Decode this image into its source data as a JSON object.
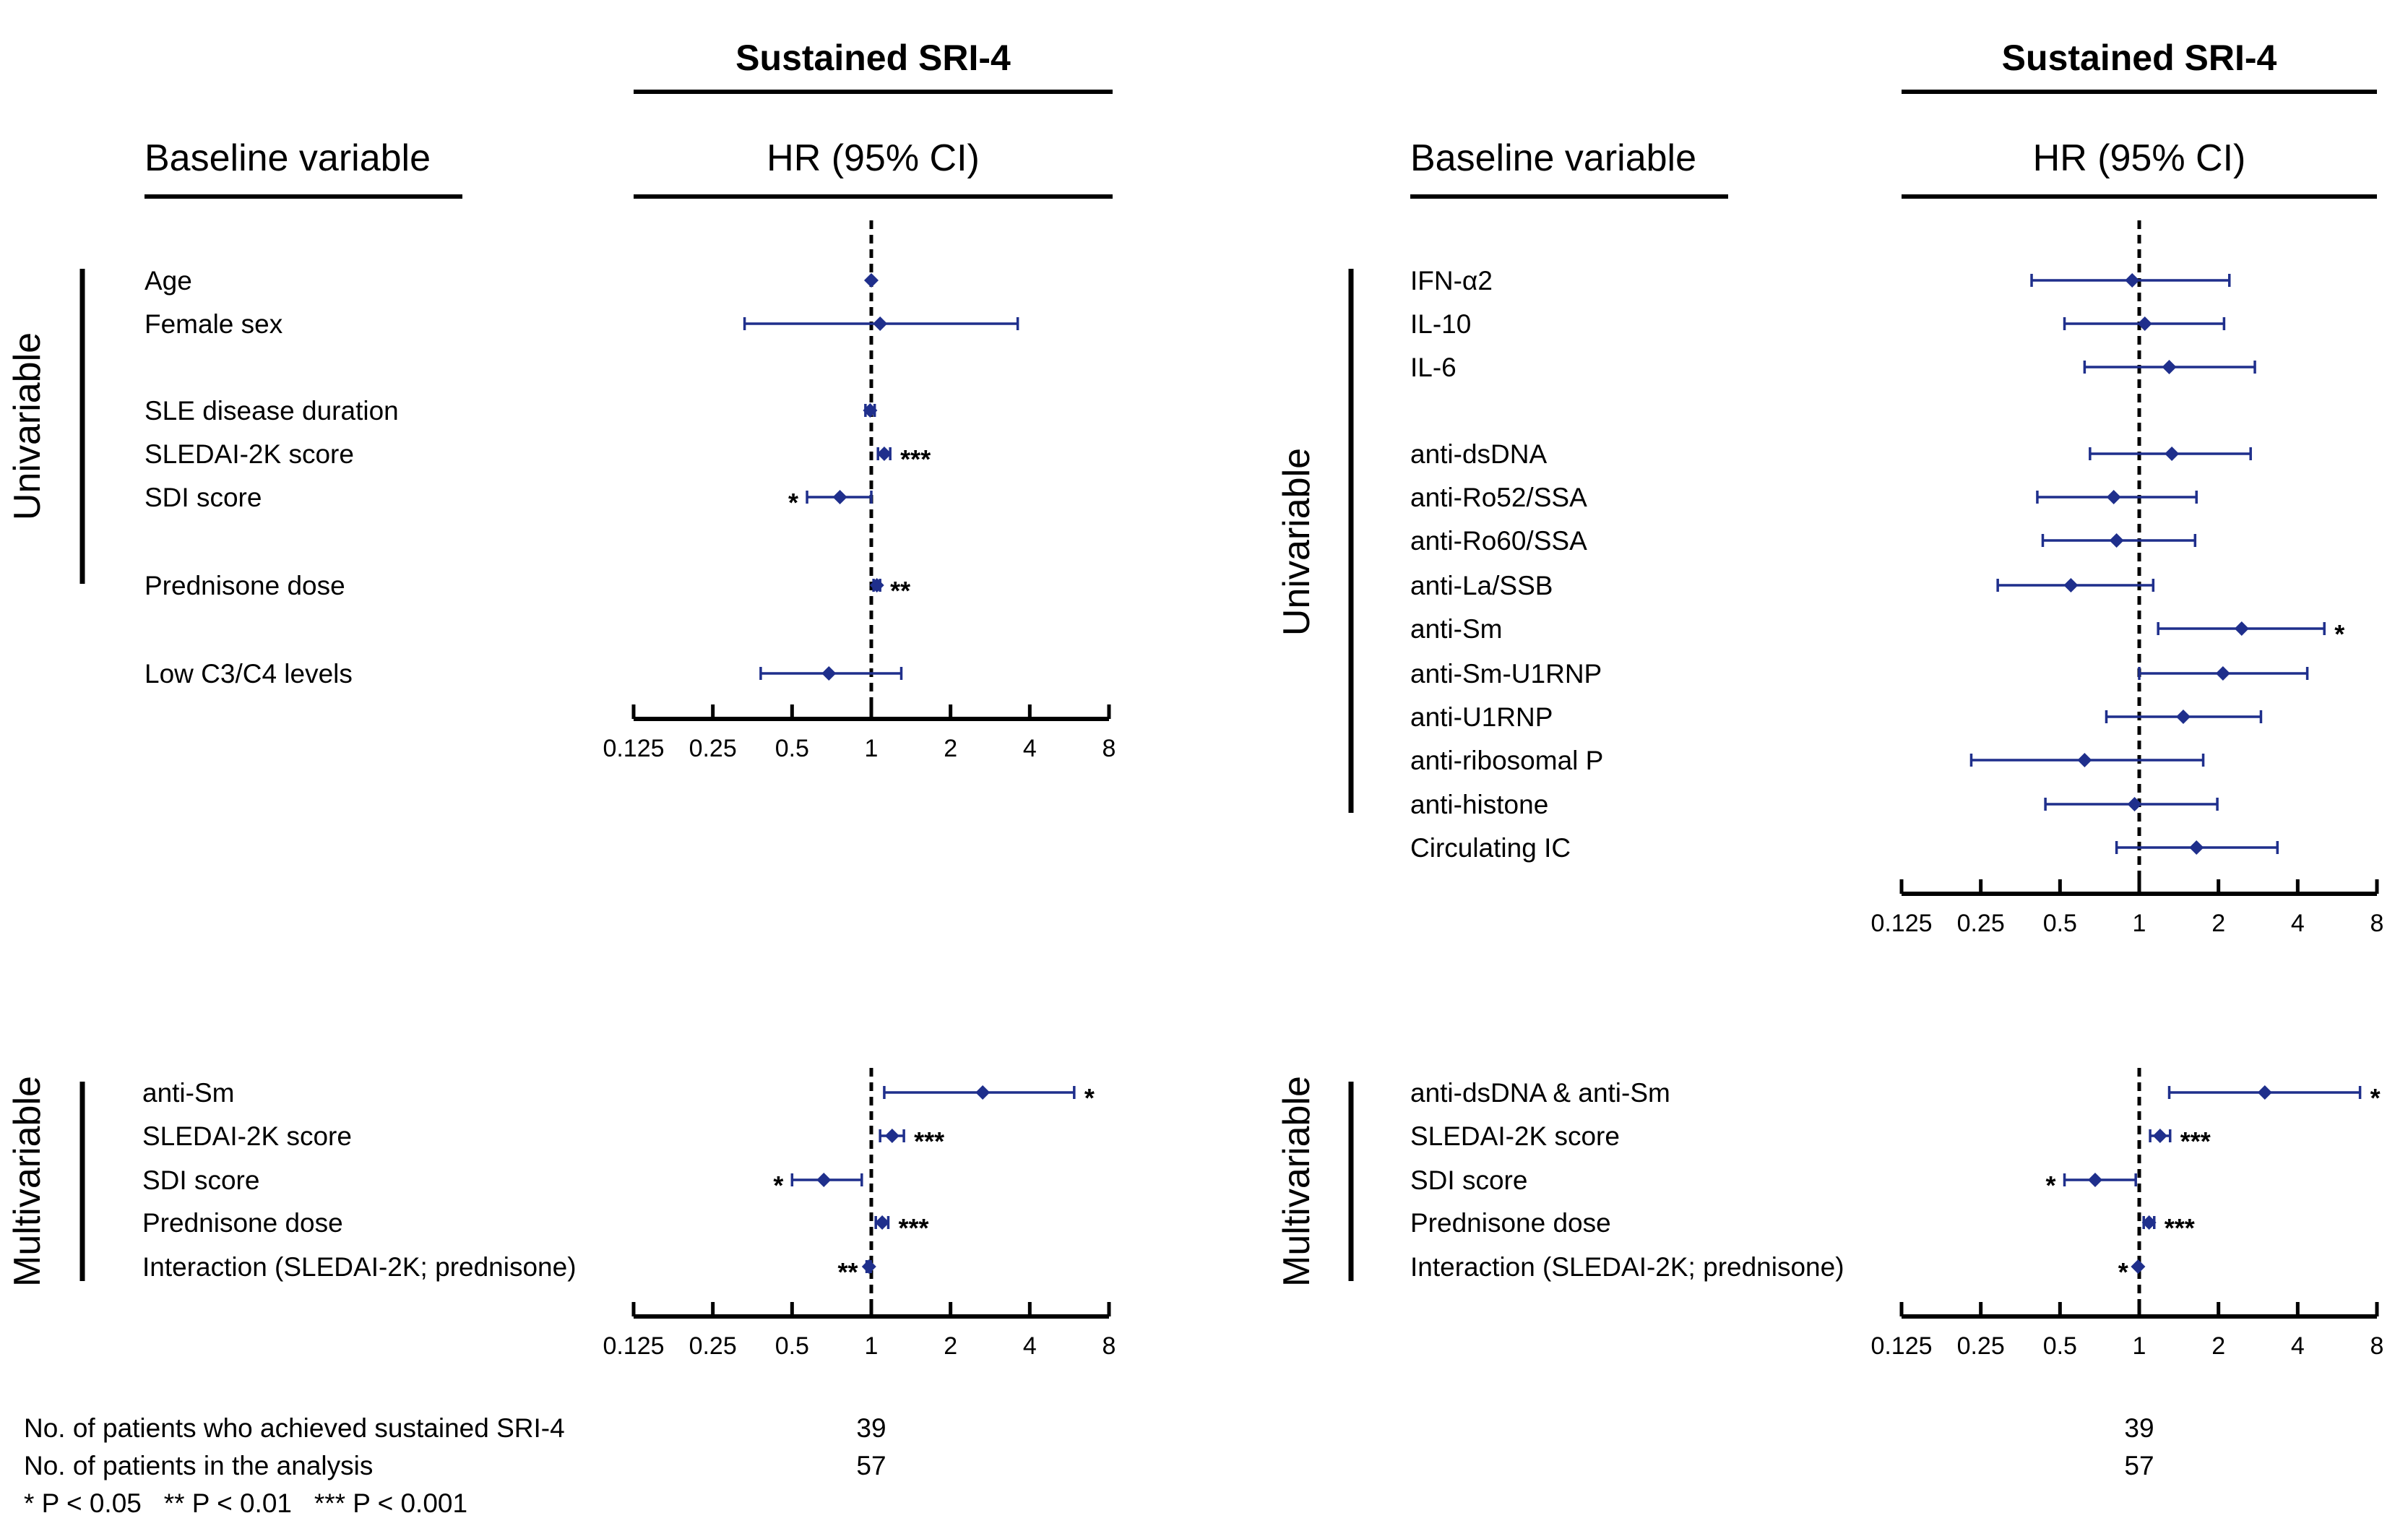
{
  "chart_data": [
    {
      "type": "forest",
      "title": "Sustained SRI-4",
      "subtitle": "HR (95% CI)",
      "column_header": "Baseline variable",
      "group_label": "Univariable",
      "xscale": "log2",
      "xlim": [
        0.125,
        8
      ],
      "ticks": [
        "0.125",
        "0.25",
        "0.5",
        "1",
        "2",
        "4",
        "8"
      ],
      "reference_line": 1,
      "rows": [
        {
          "label": "Age",
          "hr": 1.0,
          "lo": 0.99,
          "hi": 1.01,
          "sig": ""
        },
        {
          "label": "Female sex",
          "hr": 1.08,
          "lo": 0.33,
          "hi": 3.6,
          "sig": ""
        },
        {
          "label": "SLE disease duration",
          "hr": 0.99,
          "lo": 0.95,
          "hi": 1.03,
          "sig": ""
        },
        {
          "label": "SLEDAI-2K score",
          "hr": 1.12,
          "lo": 1.06,
          "hi": 1.18,
          "sig": "***"
        },
        {
          "label": "SDI score",
          "hr": 0.76,
          "lo": 0.57,
          "hi": 1.0,
          "sig": "*"
        },
        {
          "label": "Prednisone dose",
          "hr": 1.05,
          "lo": 1.02,
          "hi": 1.08,
          "sig": "**"
        },
        {
          "label": "Low C3/C4 levels",
          "hr": 0.69,
          "lo": 0.38,
          "hi": 1.3,
          "sig": ""
        }
      ]
    },
    {
      "type": "forest",
      "title": "Sustained SRI-4",
      "subtitle": "HR (95% CI)",
      "column_header": "Baseline variable",
      "group_label": "Univariable",
      "xscale": "log2",
      "xlim": [
        0.125,
        8
      ],
      "ticks": [
        "0.125",
        "0.25",
        "0.5",
        "1",
        "2",
        "4",
        "8"
      ],
      "reference_line": 1,
      "rows": [
        {
          "label": "IFN-α2",
          "hr": 0.94,
          "lo": 0.39,
          "hi": 2.2,
          "sig": ""
        },
        {
          "label": "IL-10",
          "hr": 1.05,
          "lo": 0.52,
          "hi": 2.1,
          "sig": ""
        },
        {
          "label": "IL-6",
          "hr": 1.3,
          "lo": 0.62,
          "hi": 2.75,
          "sig": ""
        },
        {
          "label": "anti-dsDNA",
          "hr": 1.33,
          "lo": 0.65,
          "hi": 2.65,
          "sig": ""
        },
        {
          "label": "anti-Ro52/SSA",
          "hr": 0.8,
          "lo": 0.41,
          "hi": 1.65,
          "sig": ""
        },
        {
          "label": "anti-Ro60/SSA",
          "hr": 0.82,
          "lo": 0.43,
          "hi": 1.63,
          "sig": ""
        },
        {
          "label": "anti-La/SSB",
          "hr": 0.55,
          "lo": 0.29,
          "hi": 1.13,
          "sig": ""
        },
        {
          "label": "anti-Sm",
          "hr": 2.45,
          "lo": 1.18,
          "hi": 5.05,
          "sig": "*"
        },
        {
          "label": "anti-Sm-U1RNP",
          "hr": 2.08,
          "lo": 1.0,
          "hi": 4.35,
          "sig": ""
        },
        {
          "label": "anti-U1RNP",
          "hr": 1.47,
          "lo": 0.75,
          "hi": 2.9,
          "sig": ""
        },
        {
          "label": "anti-ribosomal P",
          "hr": 0.62,
          "lo": 0.23,
          "hi": 1.75,
          "sig": ""
        },
        {
          "label": "anti-histone",
          "hr": 0.96,
          "lo": 0.44,
          "hi": 1.98,
          "sig": ""
        },
        {
          "label": "Circulating IC",
          "hr": 1.65,
          "lo": 0.82,
          "hi": 3.35,
          "sig": ""
        }
      ]
    },
    {
      "type": "forest",
      "group_label": "Multivariable",
      "xscale": "log2",
      "xlim": [
        0.125,
        8
      ],
      "ticks": [
        "0.125",
        "0.25",
        "0.5",
        "1",
        "2",
        "4",
        "8"
      ],
      "reference_line": 1,
      "rows": [
        {
          "label": "anti-Sm",
          "hr": 2.65,
          "lo": 1.12,
          "hi": 5.9,
          "sig": "*"
        },
        {
          "label": "SLEDAI-2K score",
          "hr": 1.2,
          "lo": 1.08,
          "hi": 1.33,
          "sig": "***"
        },
        {
          "label": "SDI score",
          "hr": 0.66,
          "lo": 0.5,
          "hi": 0.92,
          "sig": "*"
        },
        {
          "label": "Prednisone dose",
          "hr": 1.1,
          "lo": 1.04,
          "hi": 1.16,
          "sig": "***"
        },
        {
          "label": "Interaction (SLEDAI-2K; prednisone)",
          "hr": 0.98,
          "lo": 0.96,
          "hi": 0.995,
          "sig": "**"
        }
      ],
      "counts": {
        "achieved": "39",
        "total": "57"
      }
    },
    {
      "type": "forest",
      "group_label": "Multivariable",
      "xscale": "log2",
      "xlim": [
        0.125,
        8
      ],
      "ticks": [
        "0.125",
        "0.25",
        "0.5",
        "1",
        "2",
        "4",
        "8"
      ],
      "reference_line": 1,
      "rows": [
        {
          "label": "anti-dsDNA & anti-Sm",
          "hr": 3.0,
          "lo": 1.3,
          "hi": 6.9,
          "sig": "*"
        },
        {
          "label": "SLEDAI-2K score",
          "hr": 1.2,
          "lo": 1.1,
          "hi": 1.31,
          "sig": "***"
        },
        {
          "label": "SDI score",
          "hr": 0.68,
          "lo": 0.52,
          "hi": 0.97,
          "sig": "*"
        },
        {
          "label": "Prednisone dose",
          "hr": 1.09,
          "lo": 1.04,
          "hi": 1.14,
          "sig": "***"
        },
        {
          "label": "Interaction (SLEDAI-2K; prednisone)",
          "hr": 0.99,
          "lo": 0.98,
          "hi": 1.0,
          "sig": "*"
        }
      ],
      "counts": {
        "achieved": "39",
        "total": "57"
      }
    }
  ],
  "footer": {
    "achieved_label": "No. of patients who achieved sustained SRI-4",
    "total_label": "No. of patients in the analysis",
    "significance_note": "* P < 0.05   ** P < 0.01   *** P < 0.001"
  },
  "colors": {
    "marker": "#1f2f8c",
    "axis": "#000000"
  }
}
